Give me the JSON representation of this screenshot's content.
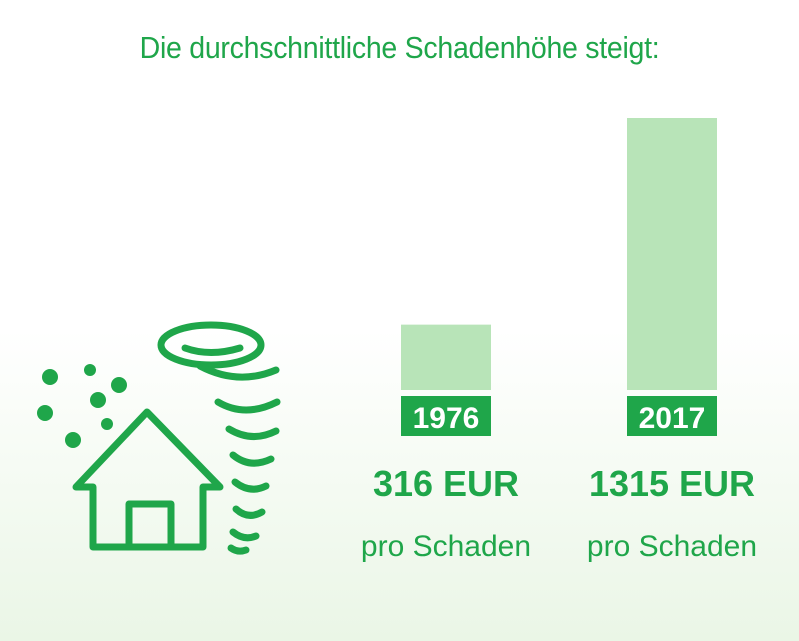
{
  "title": "Die durchschnittliche Schadenhöhe steigt:",
  "colors": {
    "accent": "#1fa64a",
    "bar": "#b8e4b8",
    "label_box": "#1fa64a",
    "label_text": "#ffffff"
  },
  "icons": [
    "house-icon",
    "tornado-icon",
    "hail-icon"
  ],
  "chart_data": {
    "type": "bar",
    "title": "Die durchschnittliche Schadenhöhe steigt:",
    "categories": [
      "1976",
      "2017"
    ],
    "values": [
      316,
      1315
    ],
    "value_labels": [
      "316 EUR",
      "1315 EUR"
    ],
    "sublabels": [
      "pro Schaden",
      "pro Schaden"
    ],
    "unit": "EUR",
    "ylim": [
      0,
      1315
    ],
    "grid": false,
    "legend": "none"
  }
}
